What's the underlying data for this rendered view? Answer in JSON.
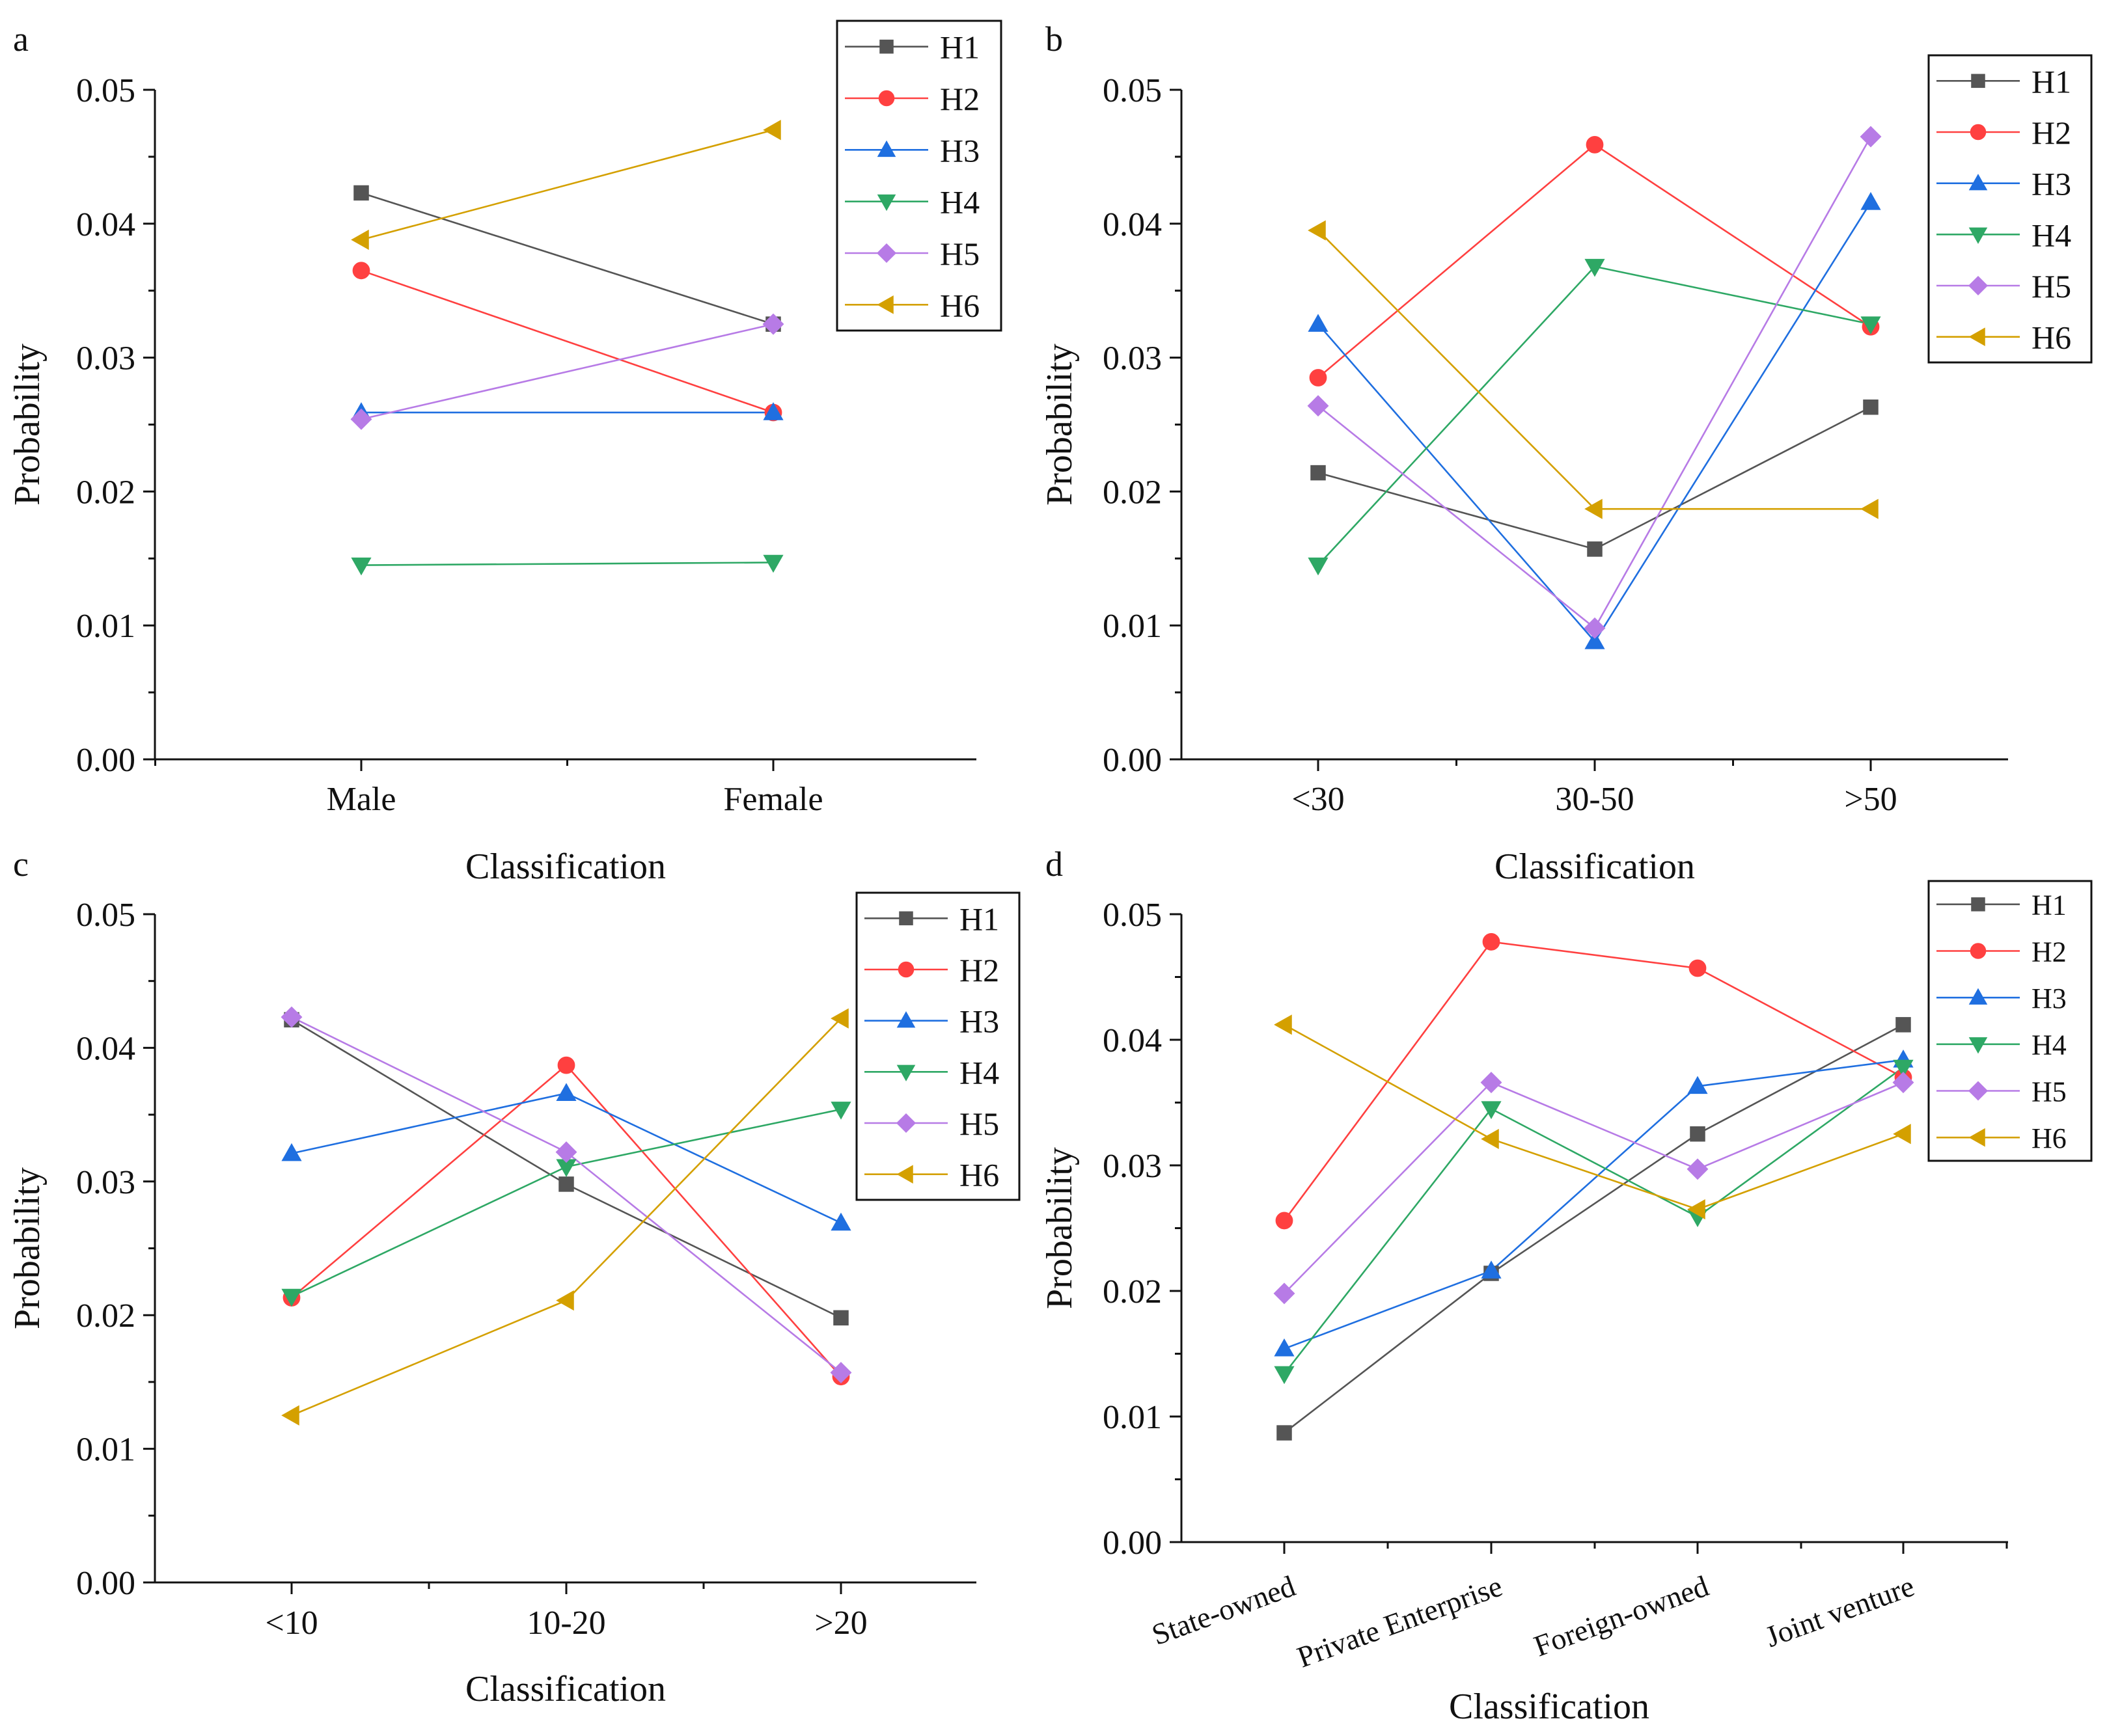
{
  "chart_data": [
    {
      "panel": "a",
      "type": "line",
      "categories": [
        "Male",
        "Female"
      ],
      "xlabel": "Classification",
      "ylabel": "Probability",
      "ylim": [
        0,
        0.05
      ],
      "yticks": [
        "0.00",
        "0.01",
        "0.02",
        "0.03",
        "0.04",
        "0.05"
      ],
      "xtick_rotation": 0,
      "series": [
        {
          "name": "H1",
          "color": "#555555",
          "marker": "square",
          "values": [
            0.0423,
            0.0325
          ]
        },
        {
          "name": "H2",
          "color": "#ff4040",
          "marker": "circle",
          "values": [
            0.0365,
            0.0259
          ]
        },
        {
          "name": "H3",
          "color": "#1f6fe0",
          "marker": "triangle-up",
          "values": [
            0.0259,
            0.0259
          ]
        },
        {
          "name": "H4",
          "color": "#2ea865",
          "marker": "triangle-down",
          "values": [
            0.0145,
            0.0147
          ]
        },
        {
          "name": "H5",
          "color": "#b77be6",
          "marker": "diamond",
          "values": [
            0.0254,
            0.0325
          ]
        },
        {
          "name": "H6",
          "color": "#d4a000",
          "marker": "triangle-left",
          "values": [
            0.0388,
            0.047
          ]
        }
      ]
    },
    {
      "panel": "b",
      "type": "line",
      "categories": [
        "<30",
        "30-50",
        ">50"
      ],
      "xlabel": "Classification",
      "ylabel": "Probability",
      "ylim": [
        0,
        0.05
      ],
      "yticks": [
        "0.00",
        "0.01",
        "0.02",
        "0.03",
        "0.04",
        "0.05"
      ],
      "xtick_rotation": 0,
      "series": [
        {
          "name": "H1",
          "color": "#555555",
          "marker": "square",
          "values": [
            0.0214,
            0.0157,
            0.0263
          ]
        },
        {
          "name": "H2",
          "color": "#ff4040",
          "marker": "circle",
          "values": [
            0.0285,
            0.0459,
            0.0323
          ]
        },
        {
          "name": "H3",
          "color": "#1f6fe0",
          "marker": "triangle-up",
          "values": [
            0.0325,
            0.0088,
            0.0416
          ]
        },
        {
          "name": "H4",
          "color": "#2ea865",
          "marker": "triangle-down",
          "values": [
            0.0145,
            0.0368,
            0.0325
          ]
        },
        {
          "name": "H5",
          "color": "#b77be6",
          "marker": "diamond",
          "values": [
            0.0264,
            0.0098,
            0.0465
          ]
        },
        {
          "name": "H6",
          "color": "#d4a000",
          "marker": "triangle-left",
          "values": [
            0.0395,
            0.0187,
            0.0187
          ]
        }
      ]
    },
    {
      "panel": "c",
      "type": "line",
      "categories": [
        "<10",
        "10-20",
        ">20"
      ],
      "xlabel": "Classification",
      "ylabel": "Probability",
      "ylim": [
        0,
        0.05
      ],
      "yticks": [
        "0.00",
        "0.01",
        "0.02",
        "0.03",
        "0.04",
        "0.05"
      ],
      "xtick_rotation": 0,
      "series": [
        {
          "name": "H1",
          "color": "#555555",
          "marker": "square",
          "values": [
            0.0421,
            0.0298,
            0.0198
          ]
        },
        {
          "name": "H2",
          "color": "#ff4040",
          "marker": "circle",
          "values": [
            0.0213,
            0.0387,
            0.0154
          ]
        },
        {
          "name": "H3",
          "color": "#1f6fe0",
          "marker": "triangle-up",
          "values": [
            0.0321,
            0.0366,
            0.0269
          ]
        },
        {
          "name": "H4",
          "color": "#2ea865",
          "marker": "triangle-down",
          "values": [
            0.0214,
            0.0311,
            0.0354
          ]
        },
        {
          "name": "H5",
          "color": "#b77be6",
          "marker": "diamond",
          "values": [
            0.0423,
            0.0322,
            0.0157
          ]
        },
        {
          "name": "H6",
          "color": "#d4a000",
          "marker": "triangle-left",
          "values": [
            0.0125,
            0.0211,
            0.0422
          ]
        }
      ]
    },
    {
      "panel": "d",
      "type": "line",
      "categories": [
        "State-owned",
        "Private Enterprise",
        "Foreign-owned",
        "Joint venture"
      ],
      "xlabel": "Classification",
      "ylabel": "Probability",
      "ylim": [
        0,
        0.05
      ],
      "yticks": [
        "0.00",
        "0.01",
        "0.02",
        "0.03",
        "0.04",
        "0.05"
      ],
      "xtick_rotation": -20,
      "series": [
        {
          "name": "H1",
          "color": "#555555",
          "marker": "square",
          "values": [
            0.0087,
            0.0214,
            0.0325,
            0.0412
          ]
        },
        {
          "name": "H2",
          "color": "#ff4040",
          "marker": "circle",
          "values": [
            0.0256,
            0.0478,
            0.0457,
            0.037
          ]
        },
        {
          "name": "H3",
          "color": "#1f6fe0",
          "marker": "triangle-up",
          "values": [
            0.0154,
            0.0216,
            0.0363,
            0.0384
          ]
        },
        {
          "name": "H4",
          "color": "#2ea865",
          "marker": "triangle-down",
          "values": [
            0.0134,
            0.0345,
            0.0259,
            0.0378
          ]
        },
        {
          "name": "H5",
          "color": "#b77be6",
          "marker": "diamond",
          "values": [
            0.0198,
            0.0366,
            0.0297,
            0.0366
          ]
        },
        {
          "name": "H6",
          "color": "#d4a000",
          "marker": "triangle-left",
          "values": [
            0.0412,
            0.0321,
            0.0265,
            0.0325
          ]
        }
      ]
    }
  ]
}
